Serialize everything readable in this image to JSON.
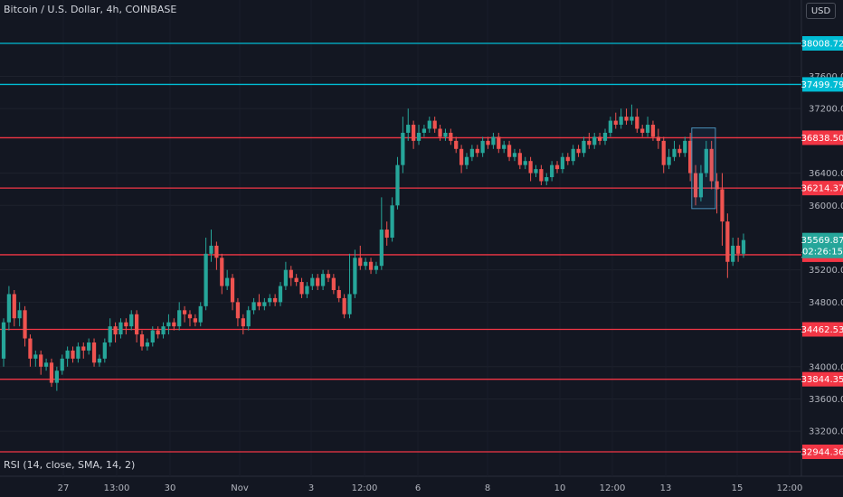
{
  "header": {
    "title": "Bitcoin / U.S. Dollar, 4h, COINBASE",
    "currency": "USD"
  },
  "indicator": {
    "label": "RSI (14, close, SMA, 14, 2)"
  },
  "colors": {
    "up": "#26a69a",
    "down": "#ef5350",
    "support": "#f23645",
    "resistance": "#00bcd4",
    "background": "#131722"
  },
  "chart_data": {
    "type": "candlestick",
    "y_ticks": [
      37600,
      37200,
      36400,
      36000,
      35200,
      34800,
      34000,
      33600,
      33200
    ],
    "ylim": [
      32944,
      38008
    ],
    "x_ticks": [
      "27",
      "13:00",
      "30",
      "Nov",
      "3",
      "12:00",
      "6",
      "8",
      "10",
      "12:00",
      "13",
      "15",
      "12:00"
    ],
    "horizontal_lines": [
      {
        "value": 38008.72,
        "label": "38008.72",
        "color": "#00bcd4"
      },
      {
        "value": 37499.79,
        "label": "37499.79",
        "color": "#00bcd4"
      },
      {
        "value": 36838.5,
        "label": "36838.50",
        "color": "#f23645"
      },
      {
        "value": 36214.37,
        "label": "36214.37",
        "color": "#f23645"
      },
      {
        "value": 35387.68,
        "label": "35387.68",
        "color": "#f23645"
      },
      {
        "value": 34462.53,
        "label": "34462.53",
        "color": "#f23645"
      },
      {
        "value": 33844.35,
        "label": "33844.35",
        "color": "#f23645"
      },
      {
        "value": 32944.36,
        "label": "32944.36",
        "color": "#f23645"
      }
    ],
    "current_price": {
      "value": 35569.87,
      "label": "35569.87",
      "countdown": "02:26:15"
    },
    "highlight_box": {
      "start_index": 130,
      "end_index": 133,
      "high": 36960,
      "low": 35960
    },
    "candles": [
      [
        34100,
        34550,
        34000,
        34600
      ],
      [
        34550,
        34900,
        34450,
        35000
      ],
      [
        34900,
        34600,
        34500,
        34950
      ],
      [
        34600,
        34700,
        34500,
        34800
      ],
      [
        34700,
        34350,
        34250,
        34750
      ],
      [
        34350,
        34100,
        34000,
        34400
      ],
      [
        34100,
        34150,
        34000,
        34200
      ],
      [
        34150,
        34000,
        33900,
        34200
      ],
      [
        34000,
        34050,
        33950,
        34100
      ],
      [
        34050,
        33800,
        33750,
        34100
      ],
      [
        33800,
        33950,
        33700,
        34000
      ],
      [
        33950,
        34100,
        33900,
        34150
      ],
      [
        34100,
        34200,
        34000,
        34250
      ],
      [
        34200,
        34100,
        34050,
        34250
      ],
      [
        34100,
        34250,
        34050,
        34300
      ],
      [
        34250,
        34200,
        34100,
        34300
      ],
      [
        34200,
        34300,
        34150,
        34350
      ],
      [
        34300,
        34050,
        34000,
        34350
      ],
      [
        34050,
        34100,
        34000,
        34150
      ],
      [
        34100,
        34300,
        34050,
        34350
      ],
      [
        34300,
        34500,
        34250,
        34600
      ],
      [
        34500,
        34400,
        34300,
        34550
      ],
      [
        34400,
        34550,
        34350,
        34600
      ],
      [
        34550,
        34500,
        34400,
        34600
      ],
      [
        34500,
        34650,
        34450,
        34700
      ],
      [
        34650,
        34400,
        34300,
        34700
      ],
      [
        34400,
        34250,
        34200,
        34450
      ],
      [
        34250,
        34300,
        34200,
        34350
      ],
      [
        34300,
        34450,
        34250,
        34500
      ],
      [
        34450,
        34400,
        34350,
        34500
      ],
      [
        34400,
        34500,
        34350,
        34550
      ],
      [
        34500,
        34550,
        34400,
        34650
      ],
      [
        34550,
        34500,
        34450,
        34600
      ],
      [
        34500,
        34700,
        34450,
        34800
      ],
      [
        34700,
        34650,
        34550,
        34750
      ],
      [
        34650,
        34600,
        34500,
        34700
      ],
      [
        34600,
        34550,
        34500,
        34650
      ],
      [
        34550,
        34750,
        34500,
        34800
      ],
      [
        34750,
        35400,
        34700,
        35600
      ],
      [
        35400,
        35500,
        35300,
        35700
      ],
      [
        35500,
        35350,
        35200,
        35550
      ],
      [
        35350,
        35000,
        34900,
        35400
      ],
      [
        35000,
        35100,
        34950,
        35200
      ],
      [
        35100,
        34800,
        34700,
        35150
      ],
      [
        34800,
        34600,
        34500,
        34850
      ],
      [
        34600,
        34500,
        34400,
        34650
      ],
      [
        34500,
        34700,
        34450,
        34750
      ],
      [
        34700,
        34800,
        34650,
        34850
      ],
      [
        34800,
        34750,
        34700,
        34900
      ],
      [
        34750,
        34800,
        34700,
        34850
      ],
      [
        34800,
        34850,
        34750,
        34900
      ],
      [
        34850,
        34800,
        34750,
        34900
      ],
      [
        34800,
        35000,
        34750,
        35050
      ],
      [
        35000,
        35200,
        34950,
        35300
      ],
      [
        35200,
        35100,
        35000,
        35250
      ],
      [
        35100,
        35050,
        35000,
        35150
      ],
      [
        35050,
        34900,
        34850,
        35100
      ],
      [
        34900,
        35000,
        34850,
        35050
      ],
      [
        35000,
        35100,
        34950,
        35150
      ],
      [
        35100,
        35000,
        34950,
        35150
      ],
      [
        35000,
        35150,
        34950,
        35200
      ],
      [
        35150,
        35100,
        35050,
        35200
      ],
      [
        35100,
        34950,
        34900,
        35150
      ],
      [
        34950,
        34850,
        34800,
        35000
      ],
      [
        34850,
        34650,
        34600,
        34900
      ],
      [
        34650,
        34900,
        34600,
        35400
      ],
      [
        34900,
        35350,
        34850,
        35450
      ],
      [
        35350,
        35250,
        35200,
        35500
      ],
      [
        35250,
        35300,
        35200,
        35350
      ],
      [
        35300,
        35200,
        35150,
        35350
      ],
      [
        35200,
        35250,
        35150,
        35300
      ],
      [
        35250,
        35700,
        35200,
        36100
      ],
      [
        35700,
        35600,
        35500,
        35800
      ],
      [
        35600,
        36000,
        35550,
        36100
      ],
      [
        36000,
        36500,
        35950,
        36600
      ],
      [
        36500,
        36900,
        36400,
        37100
      ],
      [
        36900,
        37000,
        36800,
        37200
      ],
      [
        37000,
        36800,
        36700,
        37050
      ],
      [
        36800,
        36900,
        36750,
        37000
      ],
      [
        36900,
        36950,
        36850,
        37000
      ],
      [
        36950,
        37050,
        36900,
        37100
      ],
      [
        37050,
        36950,
        36900,
        37100
      ],
      [
        36950,
        36850,
        36800,
        37000
      ],
      [
        36850,
        36900,
        36800,
        36950
      ],
      [
        36900,
        36800,
        36750,
        36950
      ],
      [
        36800,
        36700,
        36650,
        36850
      ],
      [
        36700,
        36500,
        36400,
        36750
      ],
      [
        36500,
        36600,
        36450,
        36650
      ],
      [
        36600,
        36700,
        36550,
        36750
      ],
      [
        36700,
        36650,
        36600,
        36750
      ],
      [
        36650,
        36800,
        36600,
        36850
      ],
      [
        36800,
        36750,
        36700,
        36850
      ],
      [
        36750,
        36850,
        36700,
        36900
      ],
      [
        36850,
        36700,
        36650,
        36900
      ],
      [
        36700,
        36750,
        36650,
        36800
      ],
      [
        36750,
        36600,
        36550,
        36800
      ],
      [
        36600,
        36650,
        36550,
        36700
      ],
      [
        36650,
        36500,
        36450,
        36700
      ],
      [
        36500,
        36550,
        36450,
        36600
      ],
      [
        36550,
        36400,
        36300,
        36600
      ],
      [
        36400,
        36450,
        36350,
        36500
      ],
      [
        36450,
        36300,
        36250,
        36500
      ],
      [
        36300,
        36350,
        36250,
        36400
      ],
      [
        36350,
        36500,
        36300,
        36550
      ],
      [
        36500,
        36450,
        36400,
        36550
      ],
      [
        36450,
        36600,
        36400,
        36650
      ],
      [
        36600,
        36550,
        36500,
        36650
      ],
      [
        36550,
        36700,
        36500,
        36750
      ],
      [
        36700,
        36650,
        36600,
        36750
      ],
      [
        36650,
        36800,
        36600,
        36850
      ],
      [
        36800,
        36750,
        36700,
        36900
      ],
      [
        36750,
        36850,
        36700,
        36900
      ],
      [
        36850,
        36800,
        36750,
        36900
      ],
      [
        36800,
        36900,
        36750,
        36950
      ],
      [
        36900,
        37050,
        36850,
        37100
      ],
      [
        37050,
        37000,
        36950,
        37150
      ],
      [
        37000,
        37100,
        36950,
        37200
      ],
      [
        37100,
        37050,
        37000,
        37200
      ],
      [
        37050,
        37100,
        37000,
        37250
      ],
      [
        37100,
        36950,
        36900,
        37200
      ],
      [
        36950,
        36900,
        36850,
        37000
      ],
      [
        36900,
        37000,
        36850,
        37100
      ],
      [
        37000,
        36850,
        36800,
        37050
      ],
      [
        36850,
        36800,
        36700,
        36950
      ],
      [
        36800,
        36500,
        36400,
        36850
      ],
      [
        36500,
        36600,
        36450,
        36700
      ],
      [
        36600,
        36700,
        36550,
        36800
      ],
      [
        36700,
        36650,
        36600,
        36750
      ],
      [
        36650,
        36800,
        36600,
        36850
      ],
      [
        36800,
        36400,
        36300,
        36900
      ],
      [
        36400,
        36100,
        36000,
        36500
      ],
      [
        36100,
        36400,
        36050,
        36500
      ],
      [
        36400,
        36700,
        36350,
        36800
      ],
      [
        36700,
        36300,
        36200,
        36800
      ],
      [
        36300,
        36200,
        35900,
        36400
      ],
      [
        36200,
        35800,
        35500,
        36400
      ],
      [
        35800,
        35300,
        35100,
        35900
      ],
      [
        35300,
        35500,
        35250,
        35600
      ],
      [
        35500,
        35400,
        35300,
        35600
      ],
      [
        35400,
        35570,
        35350,
        35650
      ]
    ]
  }
}
